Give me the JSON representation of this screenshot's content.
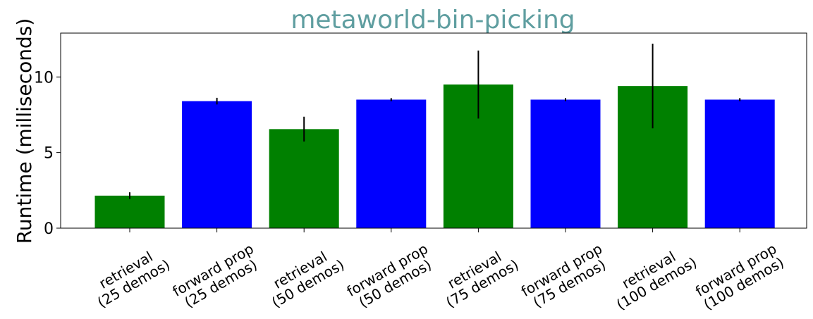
{
  "chart_data": {
    "type": "bar",
    "title": "metaworld-bin-picking",
    "ylabel": "Runtime (milliseconds)",
    "xlabel": "",
    "ylim": [
      0,
      12.9
    ],
    "yticks": [
      0,
      5,
      10
    ],
    "grid": false,
    "categories": [
      [
        "retrieval",
        "(25 demos)"
      ],
      [
        "forward prop",
        "(25 demos)"
      ],
      [
        "retrieval",
        "(50 demos)"
      ],
      [
        "forward prop",
        "(50 demos)"
      ],
      [
        "retrieval",
        "(75 demos)"
      ],
      [
        "forward prop",
        "(75 demos)"
      ],
      [
        "retrieval",
        "(100 demos)"
      ],
      [
        "forward prop",
        "(100 demos)"
      ]
    ],
    "values": [
      2.15,
      8.4,
      6.55,
      8.5,
      9.5,
      8.5,
      9.4,
      8.5
    ],
    "errors": [
      0.22,
      0.22,
      0.82,
      0.1,
      2.25,
      0.1,
      2.8,
      0.1
    ],
    "colors": [
      "#008000",
      "#0000ff",
      "#008000",
      "#0000ff",
      "#008000",
      "#0000ff",
      "#008000",
      "#0000ff"
    ]
  }
}
